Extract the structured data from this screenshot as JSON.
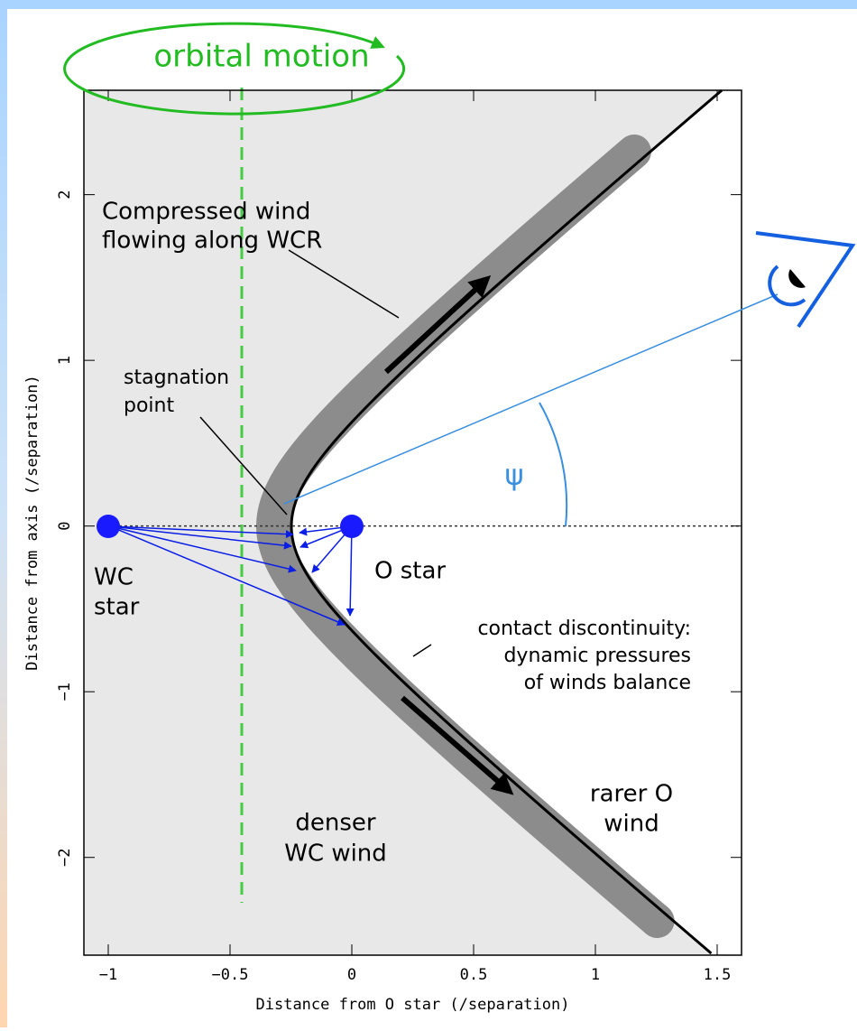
{
  "diagram": {
    "x_label": "Distance from O star (/separation)",
    "y_label": "Distance from axis (/separation)",
    "xlim": [
      -1.1,
      1.6
    ],
    "ylim": [
      -2.59,
      2.63
    ],
    "xticks": [
      {
        "value": -1,
        "label": "−1"
      },
      {
        "value": -0.5,
        "label": "−0.5"
      },
      0,
      0.5,
      1,
      1.5
    ],
    "yticks": [
      {
        "value": -2,
        "label": "−2"
      },
      {
        "value": -1,
        "label": "−1"
      },
      0,
      1,
      2
    ],
    "orbital_label": "orbital motion",
    "wcr_label": [
      "Compressed wind",
      "flowing along WCR"
    ],
    "stagnation_label": [
      "stagnation",
      "point"
    ],
    "wc_star_label": [
      "WC",
      "star"
    ],
    "o_star_label": "O star",
    "contact_label": [
      "contact discontinuity:",
      "dynamic pressures",
      "of winds balance"
    ],
    "o_wind_label": [
      "rarer O",
      "wind"
    ],
    "wc_wind_label": [
      "denser",
      "WC wind"
    ],
    "angle_label": "ψ"
  }
}
